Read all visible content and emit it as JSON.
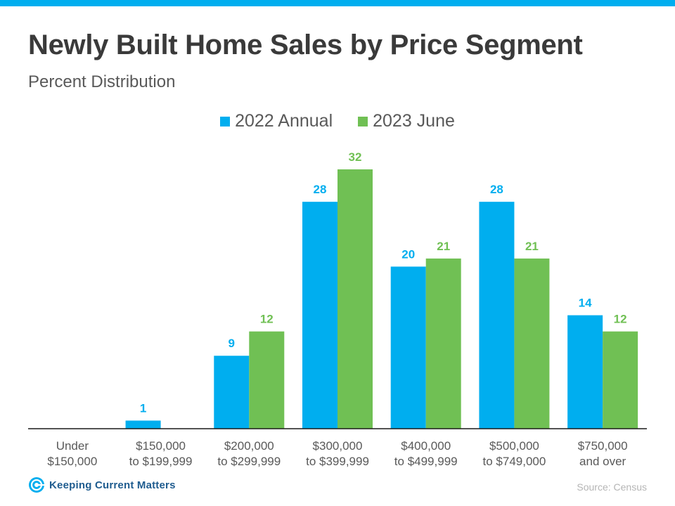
{
  "header": {
    "title": "Newly Built Home Sales by Price Segment",
    "subtitle": "Percent Distribution"
  },
  "colors": {
    "top_bar": "#00aeef",
    "series_2022": "#00aeef",
    "series_2023": "#70c054",
    "title": "#3a3a3a",
    "axis_line": "#1a1a1a"
  },
  "footer": {
    "logo_text": "Keeping Current Matters",
    "logo_icon": "kcm-spiral-icon",
    "source": "Source: Census"
  },
  "chart_data": {
    "type": "bar",
    "title": "Newly Built Home Sales by Price Segment",
    "subtitle": "Percent Distribution",
    "categories": [
      [
        "Under",
        "$150,000"
      ],
      [
        "$150,000",
        "to $199,999"
      ],
      [
        "$200,000",
        "to $299,999"
      ],
      [
        "$300,000",
        "to $399,999"
      ],
      [
        "$400,000",
        "to $499,999"
      ],
      [
        "$500,000",
        "to $749,000"
      ],
      [
        "$750,000",
        "and over"
      ]
    ],
    "series": [
      {
        "name": "2022 Annual",
        "color": "#00aeef",
        "values": [
          null,
          1,
          9,
          28,
          20,
          28,
          14
        ]
      },
      {
        "name": "2023 June",
        "color": "#70c054",
        "values": [
          null,
          null,
          12,
          32,
          21,
          21,
          12
        ]
      }
    ],
    "ylim": [
      0,
      32
    ],
    "grid": false,
    "data_labels": true,
    "legend_position": "top-center"
  }
}
